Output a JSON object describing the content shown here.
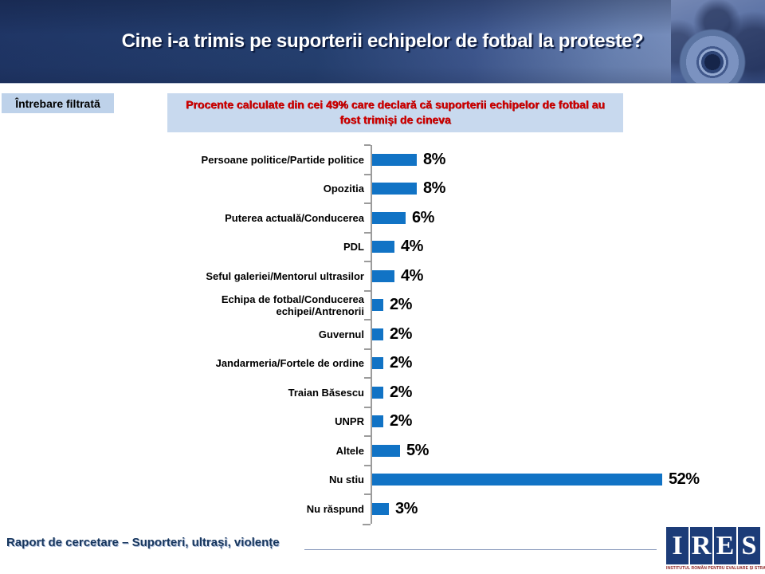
{
  "header": {
    "title": "Cine i-a trimis pe suporterii echipelor de fotbal la proteste?"
  },
  "filter_badge": {
    "label": "Întrebare filtrată"
  },
  "note_box": {
    "text": "Procente calculate din cei 49% care declară că suporterii echipelor de fotbal au fost trimiși de cineva"
  },
  "chart_data": {
    "type": "bar",
    "orientation": "horizontal",
    "title": "",
    "xlabel": "",
    "ylabel": "",
    "xlim": [
      0,
      52
    ],
    "grid": false,
    "legend": null,
    "bar_color": "#1173c5",
    "categories": [
      "Persoane politice/Partide politice",
      "Opozitia",
      "Puterea actuală/Conducerea",
      "PDL",
      "Seful galeriei/Mentorul ultrasilor",
      "Echipa de fotbal/Conducerea echipei/Antrenorii",
      "Guvernul",
      "Jandarmeria/Fortele de ordine",
      "Traian Băsescu",
      "UNPR",
      "Altele",
      "Nu stiu",
      "Nu răspund"
    ],
    "values": [
      8,
      8,
      6,
      4,
      4,
      2,
      2,
      2,
      2,
      2,
      5,
      52,
      3
    ],
    "value_labels": [
      "8%",
      "8%",
      "6%",
      "4%",
      "4%",
      "2%",
      "2%",
      "2%",
      "2%",
      "2%",
      "5%",
      "52%",
      "3%"
    ]
  },
  "footer": {
    "text": "Raport de cercetare – Suporteri, ultrași, violențe",
    "logo_letters": [
      "I",
      "R",
      "E",
      "S"
    ],
    "logo_caption": "INSTITUTUL ROMÂN PENTRU EVALUARE ȘI STRATEGIE"
  }
}
